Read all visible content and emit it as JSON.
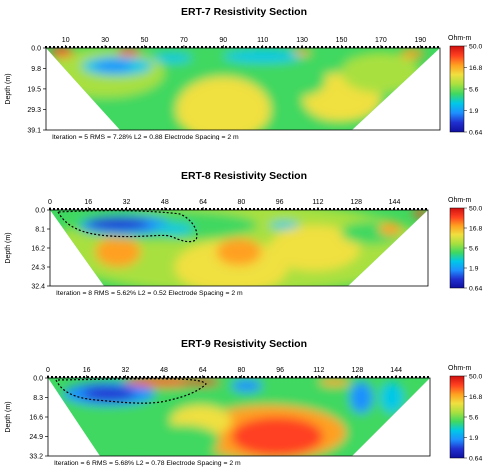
{
  "chart_data": [
    {
      "type": "heatmap",
      "title": "ERT-7 Resistivity Section",
      "ylabel": "Depth (m)",
      "xticks": [
        "10",
        "30",
        "50",
        "70",
        "90",
        "110",
        "130",
        "150",
        "170",
        "190"
      ],
      "xtick_values": [
        10,
        30,
        50,
        70,
        90,
        110,
        130,
        150,
        170,
        190
      ],
      "xlim": [
        0,
        200
      ],
      "yticks": [
        "0.0",
        "9.8",
        "19.5",
        "29.3",
        "39.1"
      ],
      "ylim": [
        0,
        39.1
      ],
      "footer": "Iteration = 5    RMS = 7.28%    L2 = 0.88    Electrode Spacing = 2 m",
      "colorbar": {
        "unit": "Ohm-m",
        "labels": [
          "50.0",
          "16.8",
          "5.6",
          "1.9",
          "0.64"
        ]
      }
    },
    {
      "type": "heatmap",
      "title": "ERT-8 Resistivity Section",
      "ylabel": "Depth (m)",
      "xticks": [
        "0",
        "16",
        "32",
        "48",
        "64",
        "80",
        "96",
        "112",
        "128",
        "144"
      ],
      "xtick_values": [
        0,
        16,
        32,
        48,
        64,
        80,
        96,
        112,
        128,
        144
      ],
      "xlim": [
        0,
        158
      ],
      "yticks": [
        "0.0",
        "8.1",
        "16.2",
        "24.3",
        "32.4"
      ],
      "ylim": [
        0,
        32.4
      ],
      "footer": "Iteration = 8    RMS = 5.62%    L2 = 0.52    Electrode Spacing = 2 m",
      "colorbar": {
        "unit": "Ohm-m",
        "labels": [
          "50.0",
          "16.8",
          "5.6",
          "1.9",
          "0.64"
        ]
      }
    },
    {
      "type": "heatmap",
      "title": "ERT-9 Resistivity Section",
      "ylabel": "Depth (m)",
      "xticks": [
        "0",
        "16",
        "32",
        "48",
        "64",
        "80",
        "96",
        "112",
        "128",
        "144"
      ],
      "xtick_values": [
        0,
        16,
        32,
        48,
        64,
        80,
        96,
        112,
        128,
        144
      ],
      "xlim": [
        0,
        158
      ],
      "yticks": [
        "0.0",
        "8.3",
        "16.6",
        "24.9",
        "33.2"
      ],
      "ylim": [
        0,
        33.2
      ],
      "footer": "Iteration = 6    RMS = 5.68%    L2 = 0.78    Electrode Spacing = 2 m",
      "colorbar": {
        "unit": "Ohm-m",
        "labels": [
          "50.0",
          "16.8",
          "5.6",
          "1.9",
          "0.64"
        ]
      }
    }
  ]
}
